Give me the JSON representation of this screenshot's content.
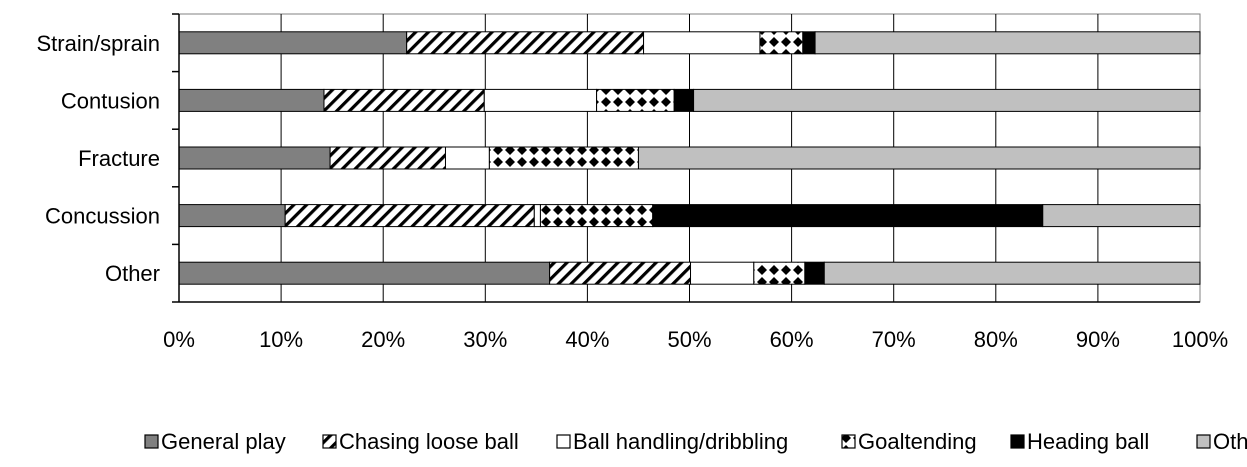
{
  "chart_data": {
    "type": "bar",
    "orientation": "horizontal",
    "stacked": "percent",
    "title": "",
    "xlabel": "",
    "ylabel": "",
    "xlim": [
      0,
      100
    ],
    "x_ticks": [
      "0%",
      "10%",
      "20%",
      "30%",
      "40%",
      "50%",
      "60%",
      "70%",
      "80%",
      "90%",
      "100%"
    ],
    "grid": true,
    "legend_position": "bottom",
    "categories": [
      "Strain/sprain",
      "Contusion",
      "Fracture",
      "Concussion",
      "Other"
    ],
    "series": [
      {
        "name": "General play",
        "values": [
          22.3,
          14.2,
          14.8,
          10.4,
          36.3
        ],
        "fill": "#808080",
        "pattern": "solid"
      },
      {
        "name": "Chasing loose ball",
        "values": [
          23.2,
          15.7,
          11.3,
          24.4,
          13.8
        ],
        "fill": "#ffffff",
        "pattern": "diagonal"
      },
      {
        "name": "Ball handling/dribbling",
        "values": [
          11.4,
          11.0,
          4.3,
          0.6,
          6.2
        ],
        "fill": "#ffffff",
        "pattern": "solid"
      },
      {
        "name": "Goaltending",
        "values": [
          4.2,
          7.6,
          14.6,
          11.0,
          5.0
        ],
        "fill": "#ffffff",
        "pattern": "diamond"
      },
      {
        "name": "Heading ball",
        "values": [
          1.2,
          1.9,
          0.0,
          38.2,
          1.9
        ],
        "fill": "#000000",
        "pattern": "solid"
      },
      {
        "name": "Other",
        "values": [
          37.7,
          49.6,
          55.0,
          15.4,
          36.8
        ],
        "fill": "#c0c0c0",
        "pattern": "solid"
      }
    ]
  }
}
